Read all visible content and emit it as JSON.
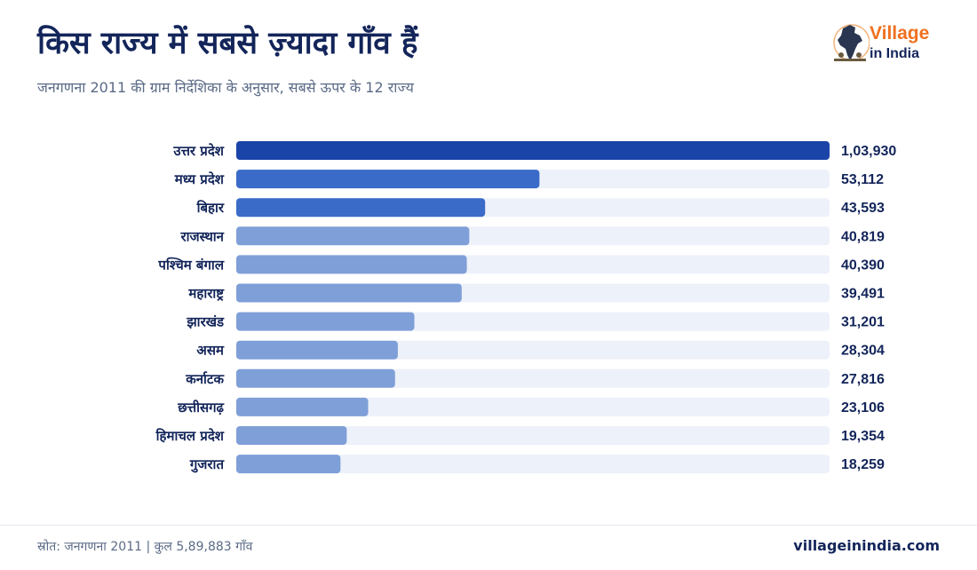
{
  "header": {
    "title": "किस राज्य में सबसे ज़्यादा गाँव हैं",
    "subtitle": "जनगणना 2011 की ग्राम निर्देशिका के अनुसार, सबसे ऊपर के 12 राज्य"
  },
  "logo": {
    "line1": "Village",
    "line2": "in India"
  },
  "chart_data": {
    "type": "bar",
    "orientation": "horizontal",
    "title": "किस राज्य में सबसे ज़्यादा गाँव हैं",
    "categories": [
      "उत्तर प्रदेश",
      "मध्य प्रदेश",
      "बिहार",
      "राजस्थान",
      "पश्चिम बंगाल",
      "महाराष्ट्र",
      "झारखंड",
      "असम",
      "कर्नाटक",
      "छत्तीसगढ़",
      "हिमाचल प्रदेश",
      "गुजरात"
    ],
    "values": [
      103930,
      53112,
      43593,
      40819,
      40390,
      39491,
      31201,
      28304,
      27816,
      23106,
      19354,
      18259
    ],
    "value_labels": [
      "1,03,930",
      "53,112",
      "43,593",
      "40,819",
      "40,390",
      "39,491",
      "31,201",
      "28,304",
      "27,816",
      "23,106",
      "19,354",
      "18,259"
    ],
    "xlim": [
      0,
      103930
    ],
    "grid": false,
    "colors": {
      "top1": "#1a44a8",
      "top2_3": "#3a6bc8",
      "rest": "#7f9fd8",
      "track": "#edf1fa",
      "label": "#13255a",
      "value": "#13255a"
    }
  },
  "footer": {
    "source": "स्रोत: जनगणना 2011 | कुल 5,89,883 गाँव",
    "site": "villageinindia.com"
  }
}
